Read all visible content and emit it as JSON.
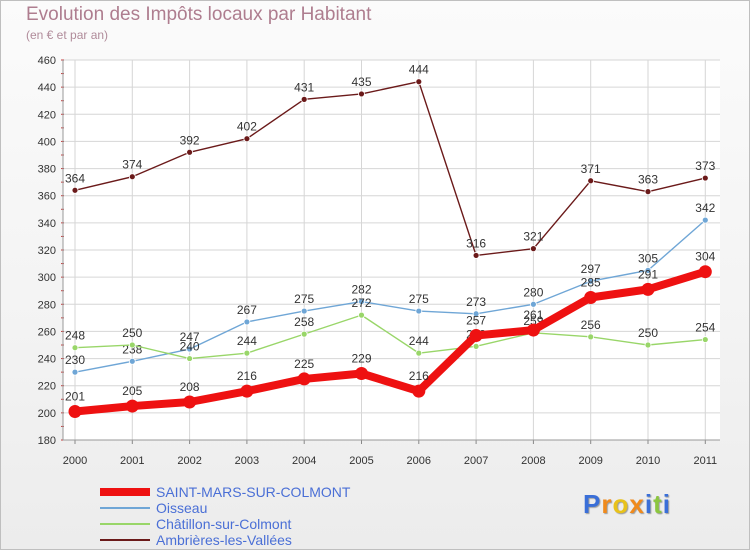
{
  "header": {
    "title": "Evolution des Impôts locaux par Habitant",
    "subtitle": "(en € et par an)"
  },
  "logo": {
    "text": "Proxiti",
    "letters": [
      "P",
      "r",
      "o",
      "x",
      "i",
      "t",
      "i"
    ],
    "colors": [
      "#3a6fd8",
      "#f08a1c",
      "#e8c21a",
      "#f08a1c",
      "#3a6fd8",
      "#8cc63f",
      "#3a6fd8"
    ]
  },
  "chart_data": {
    "type": "line",
    "title": "Evolution des Impôts locaux par Habitant",
    "subtitle": "(en € et par an)",
    "xlabel": "",
    "ylabel": "",
    "categories": [
      "2000",
      "2001",
      "2002",
      "2003",
      "2004",
      "2005",
      "2006",
      "2007",
      "2008",
      "2009",
      "2010",
      "2011"
    ],
    "ylim": [
      180,
      460
    ],
    "yticks": [
      180,
      200,
      220,
      240,
      260,
      280,
      300,
      320,
      340,
      360,
      380,
      400,
      420,
      440,
      460
    ],
    "grid": true,
    "legend_position": "bottom-left",
    "series": [
      {
        "name": "Ambrières-les-Vallées",
        "color": "#6b1a1a",
        "emphasis": false,
        "values": [
          364,
          374,
          392,
          402,
          431,
          435,
          444,
          316,
          321,
          371,
          363,
          373
        ]
      },
      {
        "name": "Oisseau",
        "color": "#6fa6d6",
        "emphasis": false,
        "values": [
          230,
          238,
          247,
          267,
          275,
          282,
          275,
          273,
          280,
          297,
          305,
          342
        ]
      },
      {
        "name": "Châtillon-sur-Colmont",
        "color": "#99d669",
        "emphasis": false,
        "values": [
          248,
          250,
          240,
          244,
          258,
          272,
          244,
          249,
          259,
          256,
          250,
          254
        ]
      },
      {
        "name": "SAINT-MARS-SUR-COLMONT",
        "color": "#ee1111",
        "emphasis": true,
        "values": [
          201,
          205,
          208,
          216,
          225,
          229,
          216,
          257,
          261,
          285,
          291,
          304
        ]
      }
    ],
    "legend_order": [
      "SAINT-MARS-SUR-COLMONT",
      "Oisseau",
      "Châtillon-sur-Colmont",
      "Ambrières-les-Vallées"
    ]
  }
}
